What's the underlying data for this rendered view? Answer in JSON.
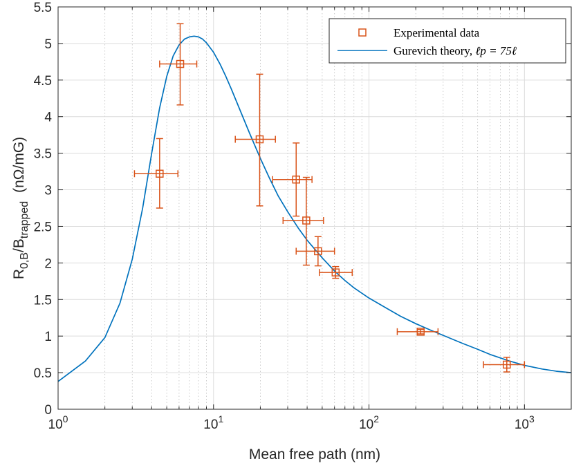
{
  "chart_data": {
    "type": "scatter",
    "xscale": "log",
    "xlim": [
      1,
      2000
    ],
    "ylim": [
      0,
      5.5
    ],
    "grid": true,
    "xlabel": "Mean free path (nm)",
    "ylabel_main": "R",
    "ylabel_sub1": "0,B",
    "ylabel_mid": "/B",
    "ylabel_sub2": "trapped",
    "ylabel_units": "(nΩ/mG)",
    "x_ticks": [
      {
        "value": 1,
        "base": "10",
        "exp": "0"
      },
      {
        "value": 10,
        "base": "10",
        "exp": "1"
      },
      {
        "value": 100,
        "base": "10",
        "exp": "2"
      },
      {
        "value": 1000,
        "base": "10",
        "exp": "3"
      }
    ],
    "y_ticks": [
      {
        "value": 0,
        "label": "0"
      },
      {
        "value": 0.5,
        "label": "0.5"
      },
      {
        "value": 1,
        "label": "1"
      },
      {
        "value": 1.5,
        "label": "1.5"
      },
      {
        "value": 2,
        "label": "2"
      },
      {
        "value": 2.5,
        "label": "2.5"
      },
      {
        "value": 3,
        "label": "3"
      },
      {
        "value": 3.5,
        "label": "3.5"
      },
      {
        "value": 4,
        "label": "4"
      },
      {
        "value": 4.5,
        "label": "4.5"
      },
      {
        "value": 5,
        "label": "5"
      },
      {
        "value": 5.5,
        "label": "5.5"
      }
    ],
    "legend_position": "top-right",
    "legend": {
      "experimental_label": "Experimental data",
      "theory_prefix": "Gurevich theory, ",
      "theory_formula": "ℓp = 75ℓ"
    },
    "series": [
      {
        "name": "Experimental data",
        "kind": "errorbar",
        "color": "#D95319",
        "points": [
          {
            "x": 4.5,
            "y": 3.22,
            "xerr_low": 3.1,
            "xerr_high": 5.9,
            "yerr_low": 2.75,
            "yerr_high": 3.7
          },
          {
            "x": 6.1,
            "y": 4.72,
            "xerr_low": 4.5,
            "xerr_high": 7.8,
            "yerr_low": 4.16,
            "yerr_high": 5.27
          },
          {
            "x": 19.8,
            "y": 3.69,
            "xerr_low": 13.8,
            "xerr_high": 25.0,
            "yerr_low": 2.78,
            "yerr_high": 4.58
          },
          {
            "x": 34.0,
            "y": 3.14,
            "xerr_low": 24.0,
            "xerr_high": 43.0,
            "yerr_low": 2.64,
            "yerr_high": 3.64
          },
          {
            "x": 39.5,
            "y": 2.58,
            "xerr_low": 28.0,
            "xerr_high": 51.0,
            "yerr_low": 1.97,
            "yerr_high": 3.17
          },
          {
            "x": 47.0,
            "y": 2.16,
            "xerr_low": 34.0,
            "xerr_high": 60.0,
            "yerr_low": 1.96,
            "yerr_high": 2.36
          },
          {
            "x": 61.0,
            "y": 1.87,
            "xerr_low": 48.0,
            "xerr_high": 78.0,
            "yerr_low": 1.79,
            "yerr_high": 1.95
          },
          {
            "x": 215,
            "y": 1.06,
            "xerr_low": 152,
            "xerr_high": 278,
            "yerr_low": 1.03,
            "yerr_high": 1.09
          },
          {
            "x": 770,
            "y": 0.61,
            "xerr_low": 545,
            "xerr_high": 1000,
            "yerr_low": 0.51,
            "yerr_high": 0.71
          }
        ]
      },
      {
        "name": "Gurevich theory, ℓp = 75ℓ",
        "kind": "line",
        "color": "#0072BD",
        "x": [
          1,
          1.5,
          2,
          2.5,
          3,
          3.5,
          4,
          4.5,
          5,
          5.5,
          6,
          6.5,
          7,
          7.5,
          8,
          8.5,
          9,
          10,
          11,
          12,
          13,
          15,
          17,
          20,
          23,
          26,
          30,
          35,
          40,
          50,
          60,
          70,
          80,
          100,
          130,
          160,
          200,
          250,
          300,
          400,
          500,
          600,
          800,
          1000,
          1300,
          1600,
          2000
        ],
        "y": [
          0.38,
          0.66,
          0.98,
          1.45,
          2.05,
          2.75,
          3.5,
          4.12,
          4.55,
          4.83,
          4.98,
          5.06,
          5.09,
          5.1,
          5.09,
          5.06,
          5.01,
          4.88,
          4.72,
          4.55,
          4.38,
          4.06,
          3.78,
          3.43,
          3.15,
          2.92,
          2.7,
          2.48,
          2.31,
          2.07,
          1.89,
          1.76,
          1.66,
          1.52,
          1.38,
          1.27,
          1.17,
          1.08,
          1.01,
          0.9,
          0.82,
          0.75,
          0.66,
          0.6,
          0.55,
          0.52,
          0.5
        ]
      }
    ]
  }
}
